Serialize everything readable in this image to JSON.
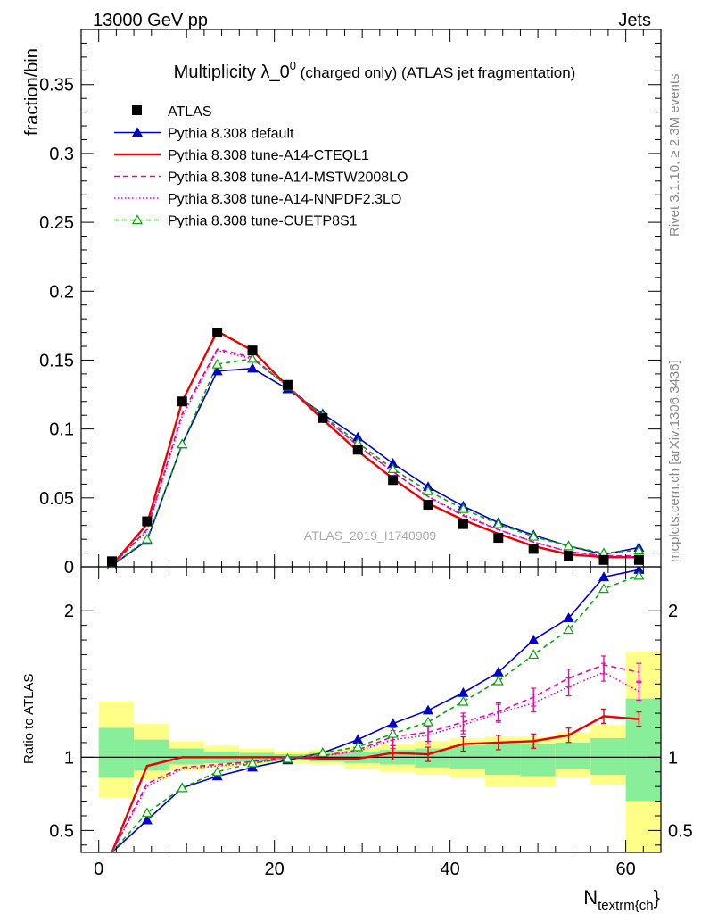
{
  "header": {
    "left": "13000 GeV pp",
    "right": "Jets"
  },
  "side_labels": {
    "top": "Rivet 3.1.10, ≥ 2.3M events",
    "bottom": "mcplots.cern.ch [arXiv:1306.3436]"
  },
  "chart_data": {
    "type": "line",
    "title_main": "Multiplicity λ_0",
    "title_sup": "0",
    "title_tail": " (charged only) (ATLAS jet fragmentation)",
    "watermark": "ATLAS_2019_I1740909",
    "ylabel": "fraction/bin",
    "ratio_ylabel": "Ratio to ATLAS",
    "xlabel_main": "N",
    "xlabel_sub": "textrm{ch",
    "xlabel_tail": "}",
    "xlim": [
      -2,
      64
    ],
    "ylim": [
      0,
      0.39
    ],
    "ratio_ylim": [
      0.35,
      2.3
    ],
    "x_ticks": [
      "0",
      "20",
      "40",
      "60"
    ],
    "y_ticks": [
      "0",
      "0.05",
      "0.1",
      "0.15",
      "0.2",
      "0.25",
      "0.3",
      "0.35"
    ],
    "ratio_ticks": [
      "0.5",
      "1",
      "2"
    ],
    "x": [
      1.5,
      5.5,
      9.5,
      13.5,
      17.5,
      21.5,
      25.5,
      29.5,
      33.5,
      37.5,
      41.5,
      45.5,
      49.5,
      53.5,
      57.5,
      61.5
    ],
    "data": {
      "name": "ATLAS",
      "values": [
        0.004,
        0.033,
        0.12,
        0.17,
        0.157,
        0.132,
        0.108,
        0.085,
        0.063,
        0.045,
        0.031,
        0.021,
        0.013,
        0.008,
        0.005,
        0.005
      ]
    },
    "series": [
      {
        "name": "Pythia 8.308 default",
        "color": "#0000cc",
        "dash": "",
        "marker": "triangle-filled",
        "values": [
          0.001,
          0.019,
          0.089,
          0.142,
          0.144,
          0.129,
          0.111,
          0.094,
          0.075,
          0.058,
          0.044,
          0.032,
          0.023,
          0.015,
          0.009,
          0.014
        ]
      },
      {
        "name": "Pythia 8.308 tune-A14-CTEQL1",
        "color": "#ee0000",
        "dash": "",
        "marker": "none",
        "values": [
          0.001,
          0.031,
          0.12,
          0.171,
          0.157,
          0.131,
          0.107,
          0.084,
          0.064,
          0.046,
          0.034,
          0.024,
          0.015,
          0.009,
          0.007,
          0.007
        ]
      },
      {
        "name": "Pythia 8.308 tune-A14-MSTW2008LO",
        "color": "#ee00aa",
        "dash": "6,4",
        "marker": "none",
        "values": [
          0.001,
          0.027,
          0.111,
          0.158,
          0.152,
          0.131,
          0.109,
          0.088,
          0.069,
          0.051,
          0.037,
          0.027,
          0.018,
          0.011,
          0.008,
          0.008
        ]
      },
      {
        "name": "Pythia 8.308 tune-A14-NNPDF2.3LO",
        "color": "#ee00aa",
        "dash": "1.5,2.5",
        "marker": "none",
        "values": [
          0.001,
          0.026,
          0.109,
          0.157,
          0.151,
          0.131,
          0.109,
          0.088,
          0.069,
          0.051,
          0.038,
          0.027,
          0.018,
          0.011,
          0.008,
          0.007
        ]
      },
      {
        "name": "Pythia 8.308 tune-CUETP8S1",
        "color": "#00aa00",
        "dash": "5,4",
        "marker": "triangle-open",
        "values": [
          0.001,
          0.02,
          0.089,
          0.147,
          0.151,
          0.131,
          0.11,
          0.09,
          0.071,
          0.055,
          0.042,
          0.031,
          0.022,
          0.015,
          0.01,
          0.012
        ]
      }
    ],
    "ratio_series": [
      {
        "name": "Pythia 8.308 default",
        "values": [
          0.25,
          0.57,
          0.79,
          0.87,
          0.93,
          0.98,
          1.03,
          1.12,
          1.23,
          1.32,
          1.44,
          1.58,
          1.8,
          1.95,
          2.23,
          2.28
        ]
      },
      {
        "name": "Pythia 8.308 tune-A14-CTEQL1",
        "values": [
          0.25,
          0.94,
          1.0,
          1.0,
          1.0,
          1.0,
          0.99,
          0.99,
          1.03,
          1.02,
          1.09,
          1.1,
          1.11,
          1.15,
          1.28,
          1.26
        ]
      },
      {
        "name": "Pythia 8.308 tune-A14-MSTW2008LO",
        "values": [
          0.25,
          0.82,
          0.93,
          0.95,
          0.97,
          1.0,
          1.01,
          1.05,
          1.14,
          1.17,
          1.24,
          1.31,
          1.41,
          1.54,
          1.63,
          1.58
        ]
      },
      {
        "name": "Pythia 8.308 tune-A14-NNPDF2.3LO",
        "values": [
          0.25,
          0.8,
          0.92,
          0.94,
          0.96,
          0.99,
          1.01,
          1.04,
          1.12,
          1.15,
          1.22,
          1.3,
          1.37,
          1.48,
          1.58,
          1.45
        ]
      },
      {
        "name": "Pythia 8.308 tune-CUETP8S1",
        "values": [
          0.25,
          0.62,
          0.79,
          0.9,
          0.96,
          0.99,
          1.03,
          1.07,
          1.16,
          1.24,
          1.38,
          1.52,
          1.7,
          1.87,
          2.15,
          2.24
        ]
      }
    ],
    "ratio_bands": {
      "stat_color": "#88ee99",
      "total_color": "#ffff88",
      "bins": [
        [
          0,
          4
        ],
        [
          4,
          8
        ],
        [
          8,
          12
        ],
        [
          12,
          16
        ],
        [
          16,
          20
        ],
        [
          20,
          24
        ],
        [
          24,
          28
        ],
        [
          28,
          32
        ],
        [
          32,
          36
        ],
        [
          36,
          40
        ],
        [
          40,
          44
        ],
        [
          44,
          48
        ],
        [
          48,
          52
        ],
        [
          52,
          56
        ],
        [
          56,
          60
        ],
        [
          60,
          64
        ]
      ],
      "total_lo": [
        0.72,
        0.85,
        0.91,
        0.93,
        0.95,
        0.96,
        0.95,
        0.92,
        0.9,
        0.88,
        0.86,
        0.8,
        0.8,
        0.86,
        0.81,
        0.3
      ],
      "total_hi": [
        1.38,
        1.23,
        1.11,
        1.08,
        1.06,
        1.04,
        1.05,
        1.07,
        1.09,
        1.11,
        1.13,
        1.14,
        1.14,
        1.17,
        1.22,
        1.72
      ],
      "stat_lo": [
        0.86,
        0.91,
        0.95,
        0.96,
        0.97,
        0.98,
        0.97,
        0.96,
        0.95,
        0.93,
        0.92,
        0.88,
        0.87,
        0.92,
        0.88,
        0.7
      ],
      "stat_hi": [
        1.2,
        1.12,
        1.06,
        1.04,
        1.03,
        1.02,
        1.03,
        1.04,
        1.05,
        1.06,
        1.08,
        1.09,
        1.09,
        1.1,
        1.13,
        1.4
      ]
    },
    "legend": {
      "placement": "top-left"
    }
  }
}
